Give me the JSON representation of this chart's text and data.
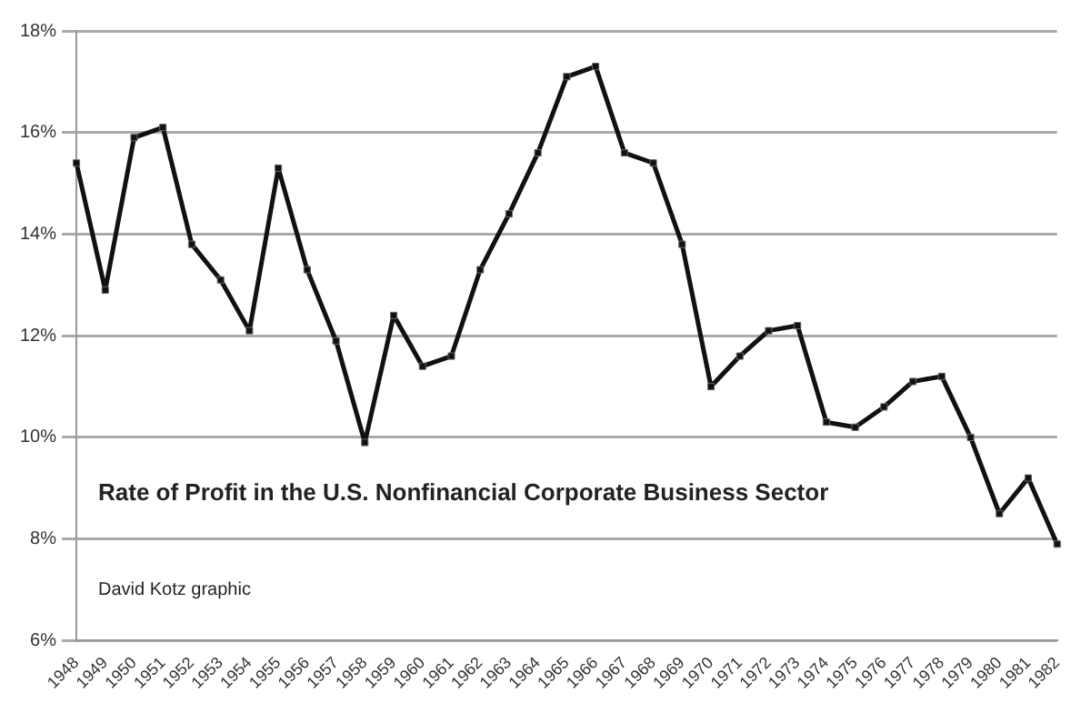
{
  "chart_data": {
    "type": "line",
    "title": "Rate of Profit in the U.S. Nonfinancial Corporate Business Sector",
    "annotations": [
      "David Kotz graphic"
    ],
    "categories": [
      "1948",
      "1949",
      "1950",
      "1951",
      "1952",
      "1953",
      "1954",
      "1955",
      "1956",
      "1957",
      "1958",
      "1959",
      "1960",
      "1961",
      "1962",
      "1963",
      "1964",
      "1965",
      "1966",
      "1967",
      "1968",
      "1969",
      "1970",
      "1971",
      "1972",
      "1973",
      "1974",
      "1975",
      "1976",
      "1977",
      "1978",
      "1979",
      "1980",
      "1981",
      "1982"
    ],
    "series": [
      {
        "color": "#111111",
        "values": [
          15.4,
          12.9,
          15.9,
          16.1,
          13.8,
          13.1,
          12.1,
          15.3,
          13.3,
          11.9,
          9.9,
          12.4,
          11.4,
          11.6,
          13.3,
          14.4,
          15.6,
          17.1,
          17.3,
          15.6,
          15.4,
          13.8,
          11.0,
          11.6,
          12.1,
          12.2,
          10.3,
          10.2,
          10.6,
          11.1,
          11.2,
          10.0,
          8.5,
          9.2,
          7.9
        ]
      }
    ],
    "ylim": [
      6,
      18
    ],
    "yticks": [
      {
        "value": 6,
        "label": "6%"
      },
      {
        "value": 8,
        "label": "8%"
      },
      {
        "value": 10,
        "label": "10%"
      },
      {
        "value": 12,
        "label": "12%"
      },
      {
        "value": 14,
        "label": "14%"
      },
      {
        "value": 16,
        "label": "16%"
      },
      {
        "value": 18,
        "label": "18%"
      }
    ],
    "grid": "y",
    "legend": false,
    "marker": "square",
    "line_style": "solid"
  }
}
